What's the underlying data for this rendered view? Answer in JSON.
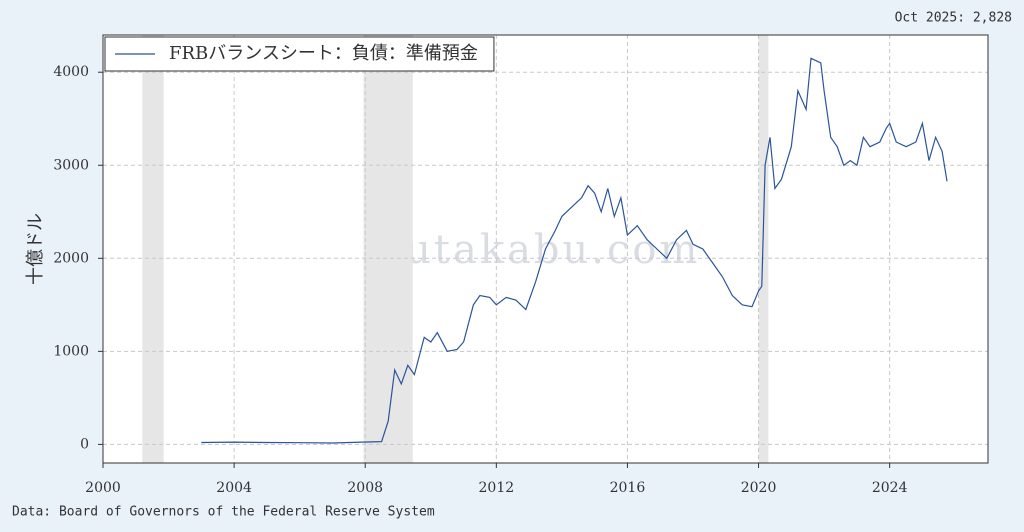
{
  "chart_data": {
    "type": "line",
    "annotation": "Oct 2025: 2,828",
    "ylabel": "十億ドル",
    "watermark": "yutakabu.com",
    "source": "Data: Board of Governors of the Federal Reserve System",
    "legend_loc": "upper left",
    "grid": true,
    "xlim": [
      2000,
      2027
    ],
    "ylim": [
      -200,
      4400
    ],
    "xticks": [
      2000,
      2004,
      2008,
      2012,
      2016,
      2020,
      2024
    ],
    "yticks": [
      0,
      1000,
      2000,
      3000,
      4000
    ],
    "shaded_regions": [
      [
        2001.2,
        2001.85
      ],
      [
        2007.95,
        2009.45
      ],
      [
        2020.0,
        2020.3
      ]
    ],
    "shade_color": "#e6e6e6",
    "x": [
      2003.0,
      2004.0,
      2005.0,
      2006.0,
      2007.0,
      2007.9,
      2008.5,
      2008.7,
      2008.9,
      2009.1,
      2009.3,
      2009.5,
      2009.8,
      2010.0,
      2010.2,
      2010.5,
      2010.8,
      2011.0,
      2011.3,
      2011.5,
      2011.8,
      2012.0,
      2012.3,
      2012.6,
      2012.9,
      2013.2,
      2013.5,
      2013.8,
      2014.0,
      2014.3,
      2014.6,
      2014.8,
      2015.0,
      2015.2,
      2015.4,
      2015.6,
      2015.8,
      2016.0,
      2016.3,
      2016.6,
      2016.9,
      2017.2,
      2017.5,
      2017.8,
      2018.0,
      2018.3,
      2018.6,
      2018.9,
      2019.2,
      2019.5,
      2019.8,
      2020.0,
      2020.1,
      2020.2,
      2020.35,
      2020.5,
      2020.7,
      2021.0,
      2021.2,
      2021.45,
      2021.6,
      2021.9,
      2022.0,
      2022.2,
      2022.4,
      2022.6,
      2022.8,
      2023.0,
      2023.2,
      2023.4,
      2023.7,
      2023.9,
      2024.0,
      2024.2,
      2024.5,
      2024.8,
      2025.0,
      2025.2,
      2025.4,
      2025.6,
      2025.75
    ],
    "series": [
      {
        "name": "FRBバランスシート：負債：準備預金",
        "color": "#2a5599",
        "values": [
          20,
          25,
          20,
          18,
          15,
          25,
          30,
          250,
          800,
          650,
          850,
          750,
          1150,
          1100,
          1200,
          1000,
          1020,
          1100,
          1500,
          1600,
          1580,
          1500,
          1580,
          1550,
          1450,
          1750,
          2100,
          2300,
          2450,
          2550,
          2650,
          2780,
          2700,
          2500,
          2750,
          2450,
          2650,
          2250,
          2350,
          2200,
          2100,
          2000,
          2200,
          2300,
          2150,
          2100,
          1950,
          1800,
          1600,
          1500,
          1480,
          1650,
          1700,
          3000,
          3300,
          2750,
          2850,
          3200,
          3800,
          3600,
          4150,
          4100,
          3800,
          3300,
          3200,
          3000,
          3050,
          3000,
          3300,
          3200,
          3250,
          3400,
          3450,
          3250,
          3200,
          3250,
          3450,
          3050,
          3300,
          3150,
          2828
        ]
      }
    ]
  }
}
